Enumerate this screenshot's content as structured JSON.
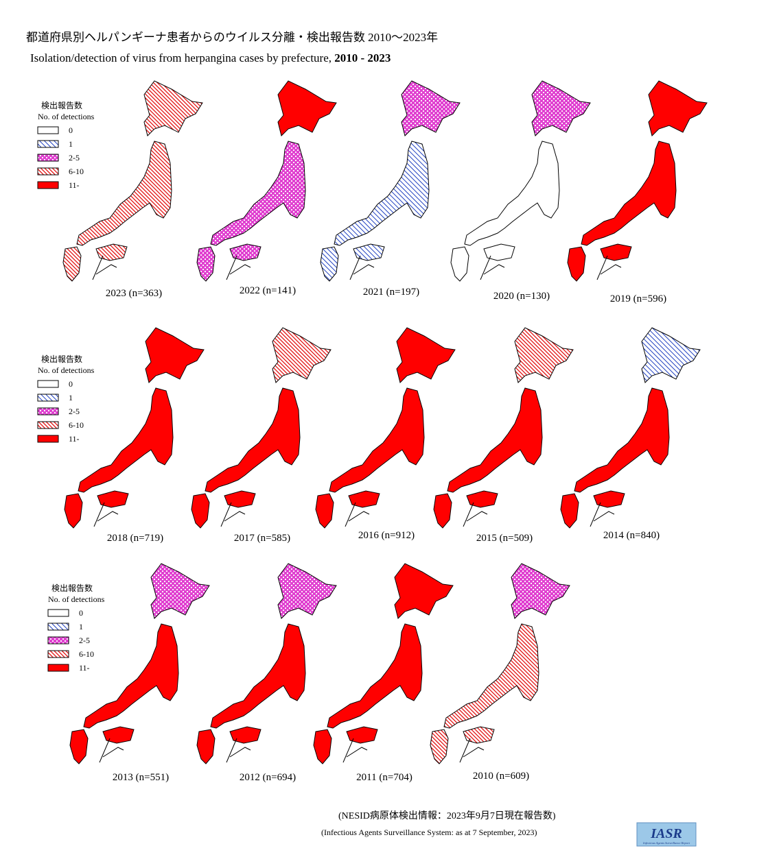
{
  "header": {
    "title_ja": "都道府県別ヘルパンギーナ患者からのウイルス分離・検出報告数 2010〜2023年",
    "title_en": "Isolation/detection of virus from herpangina cases by prefecture,",
    "title_en_years": "2010 - 2023"
  },
  "legends": [
    {
      "title_ja": "検出報告数",
      "title_en": "No. of detections",
      "items": [
        "0",
        "1",
        "2-5",
        "6-10",
        "11-"
      ]
    },
    {
      "title_ja": "検出報告数",
      "title_en": "No. of detections",
      "items": [
        "0",
        "1",
        "2-5",
        "6-10",
        "11-"
      ]
    },
    {
      "title_ja": "検出報告数",
      "title_en": "No. of detections",
      "items": [
        "0",
        "1",
        "2-5",
        "6-10",
        "11-"
      ]
    }
  ],
  "maps": [
    {
      "label": "2023 (n=363)"
    },
    {
      "label": "2022 (n=141)"
    },
    {
      "label": "2021 (n=197)"
    },
    {
      "label": "2020 (n=130)"
    },
    {
      "label": "2019 (n=596)"
    },
    {
      "label": "2018 (n=719)"
    },
    {
      "label": "2017 (n=585)"
    },
    {
      "label": "2016 (n=912)"
    },
    {
      "label": "2015 (n=509)"
    },
    {
      "label": "2014 (n=840)"
    },
    {
      "label": "2013 (n=551)"
    },
    {
      "label": "2012 (n=694)"
    },
    {
      "label": "2011 (n=704)"
    },
    {
      "label": "2010 (n=609)"
    }
  ],
  "footer": {
    "source_ja": "(NESID病原体検出情報：2023年9月7日現在報告数)",
    "source_en": "(Infectious Agents Surveillance System: as at 7 September, 2023)",
    "logo": "IASR",
    "logo_sub": "Infectious Agents Surveillance Report"
  }
}
